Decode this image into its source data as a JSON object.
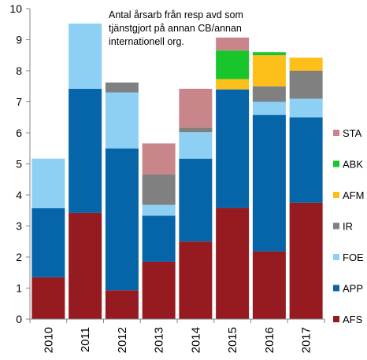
{
  "chart_data": {
    "type": "bar",
    "stacked": true,
    "categories": [
      "2010",
      "2011",
      "2012",
      "2013",
      "2014",
      "2015",
      "2016",
      "2017"
    ],
    "ylim": [
      0,
      10
    ],
    "yticks": [
      "0",
      "1",
      "2",
      "3",
      "4",
      "5",
      "6",
      "7",
      "8",
      "9",
      "10"
    ],
    "grid": false,
    "legend_position": "right",
    "annotation": [
      "Antal årsarb från resp avd som",
      "tjänstgjort på annan CB/annan",
      "internationell org."
    ],
    "series": [
      {
        "name": "AFS",
        "color": "#951B20",
        "values": [
          1.35,
          3.42,
          0.93,
          1.85,
          2.5,
          3.58,
          2.18,
          3.75
        ]
      },
      {
        "name": "APP",
        "color": "#0664A8",
        "values": [
          2.22,
          4.0,
          4.57,
          1.48,
          2.67,
          3.82,
          4.4,
          2.75
        ]
      },
      {
        "name": "FOE",
        "color": "#8ECFF4",
        "values": [
          1.6,
          2.1,
          1.8,
          0.35,
          0.85,
          0.0,
          0.42,
          0.6
        ]
      },
      {
        "name": "IR",
        "color": "#808080",
        "values": [
          0.0,
          0.0,
          0.32,
          0.98,
          0.15,
          0.0,
          0.5,
          0.9
        ]
      },
      {
        "name": "AFM",
        "color": "#FDBF1A",
        "values": [
          0.0,
          0.0,
          0.0,
          0.0,
          0.0,
          0.33,
          1.0,
          0.42
        ]
      },
      {
        "name": "ABK",
        "color": "#18C52A",
        "values": [
          0.0,
          0.0,
          0.0,
          0.0,
          0.0,
          0.92,
          0.1,
          0.0
        ]
      },
      {
        "name": "STA",
        "color": "#C8868A",
        "values": [
          0.0,
          0.0,
          0.0,
          1.0,
          1.25,
          0.42,
          0.0,
          0.0
        ]
      }
    ],
    "legend_order": [
      "STA",
      "ABK",
      "AFM",
      "IR",
      "FOE",
      "APP",
      "AFS"
    ]
  }
}
